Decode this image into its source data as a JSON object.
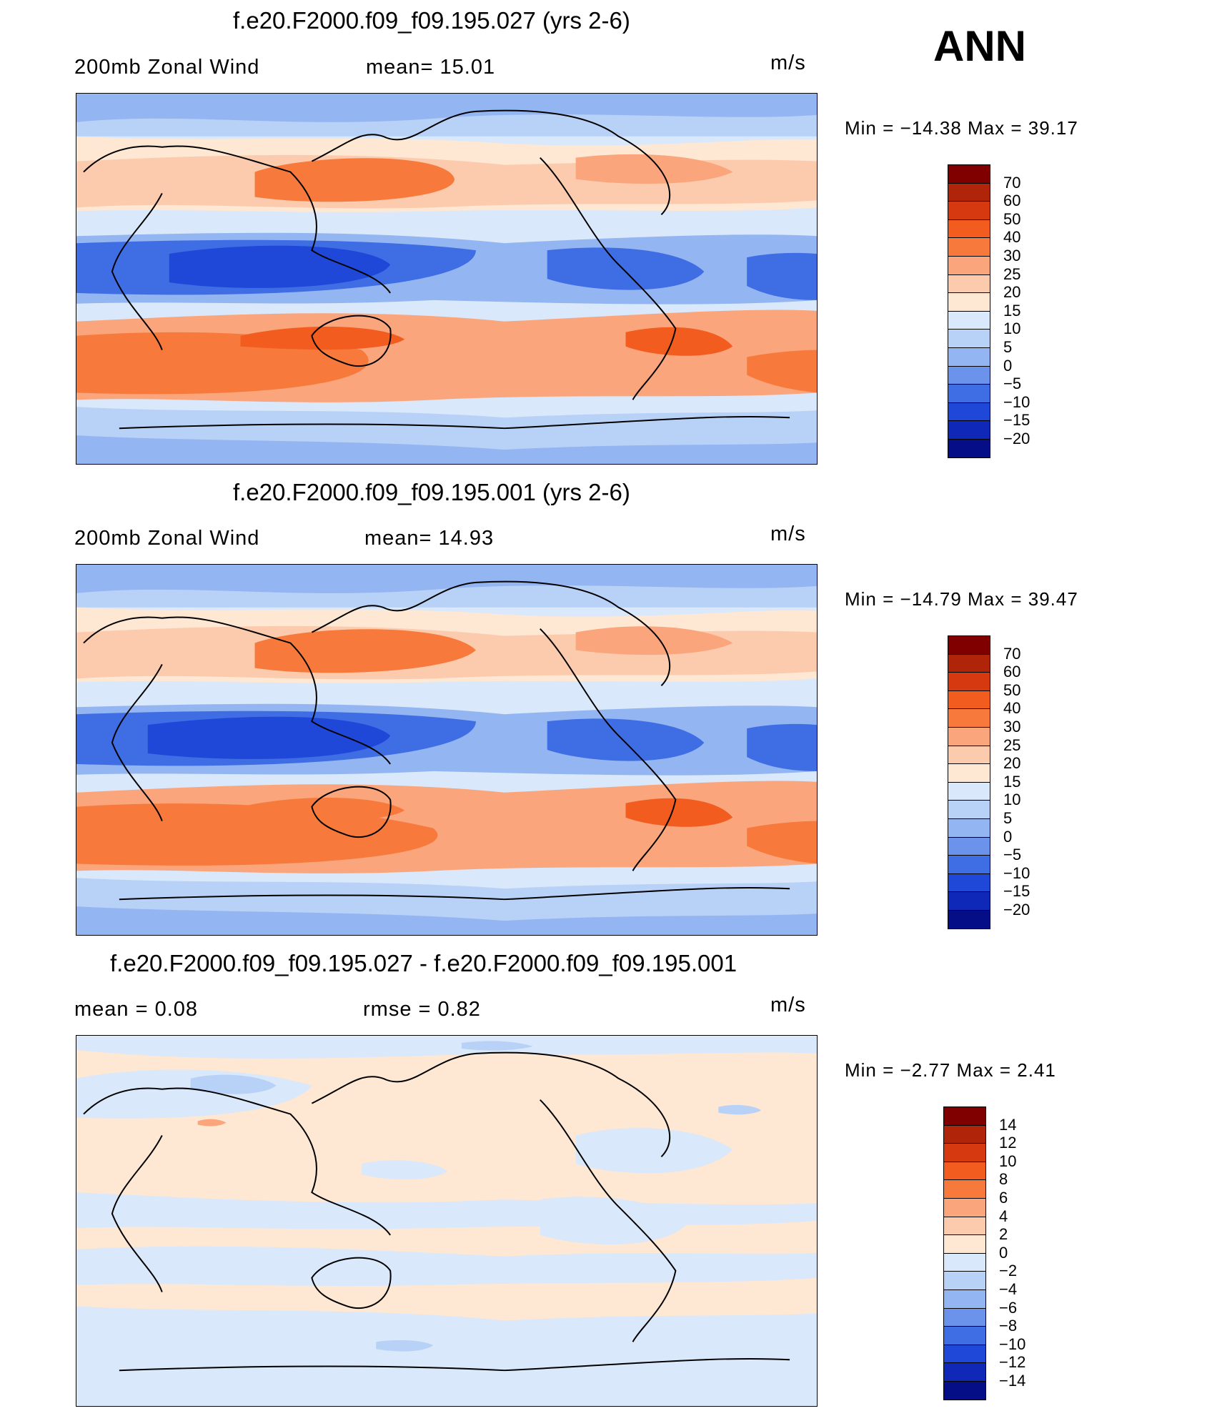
{
  "page_title": "ANN",
  "panels": [
    {
      "title": "f.e20.F2000.f09_f09.195.027 (yrs 2-6)",
      "left_label": "200mb  Zonal  Wind",
      "mid_label": "mean=   15.01",
      "units": "m/s",
      "minmax": "Min  =  −14.38  Max  =    39.17"
    },
    {
      "title": "f.e20.F2000.f09_f09.195.001 (yrs 2-6)",
      "left_label": "200mb  Zonal  Wind",
      "mid_label": "mean=   14.93",
      "units": "m/s",
      "minmax": "Min  =  −14.79  Max  =    39.47"
    },
    {
      "title": "f.e20.F2000.f09_f09.195.027 - f.e20.F2000.f09_f09.195.001",
      "left_label": "mean  =     0.08",
      "mid_label": "rmse  =     0.82",
      "units": "m/s",
      "minmax": "Min  =    −2.77  Max  =     2.41"
    }
  ],
  "colorbar_levels": [
    "70",
    "60",
    "50",
    "40",
    "30",
    "25",
    "20",
    "15",
    "10",
    "5",
    "0",
    "−5",
    "−10",
    "−15",
    "−20"
  ],
  "diff_colorbar_levels": [
    "14",
    "12",
    "10",
    "8",
    "6",
    "4",
    "2",
    "0",
    "−2",
    "−4",
    "−6",
    "−8",
    "−10",
    "−12",
    "−14"
  ],
  "colors": [
    "#800000",
    "#b0250a",
    "#d6390f",
    "#f25c1f",
    "#f77a3c",
    "#faa57c",
    "#fccbae",
    "#fee7d3",
    "#d9e8fa",
    "#b8d1f7",
    "#93b5f2",
    "#6b93ec",
    "#3f6de3",
    "#1f48d9",
    "#1028b8",
    "#050e87"
  ],
  "map_coastlines": "black",
  "chart_data": [
    {
      "type": "heatmap",
      "title": "f.e20.F2000.f09_f09.195.027 (yrs 2-6)",
      "variable": "200mb Zonal Wind",
      "units": "m/s",
      "mean": 15.01,
      "min": -14.38,
      "max": 39.17,
      "contour_levels": [
        -20,
        -15,
        -10,
        -5,
        0,
        5,
        10,
        15,
        20,
        25,
        30,
        40,
        50,
        60,
        70
      ]
    },
    {
      "type": "heatmap",
      "title": "f.e20.F2000.f09_f09.195.001 (yrs 2-6)",
      "variable": "200mb Zonal Wind",
      "units": "m/s",
      "mean": 14.93,
      "min": -14.79,
      "max": 39.47,
      "contour_levels": [
        -20,
        -15,
        -10,
        -5,
        0,
        5,
        10,
        15,
        20,
        25,
        30,
        40,
        50,
        60,
        70
      ]
    },
    {
      "type": "heatmap",
      "title": "f.e20.F2000.f09_f09.195.027 - f.e20.F2000.f09_f09.195.001",
      "units": "m/s",
      "mean": 0.08,
      "rmse": 0.82,
      "min": -2.77,
      "max": 2.41,
      "contour_levels": [
        -14,
        -12,
        -10,
        -8,
        -6,
        -4,
        -2,
        0,
        2,
        4,
        6,
        8,
        10,
        12,
        14
      ]
    }
  ]
}
